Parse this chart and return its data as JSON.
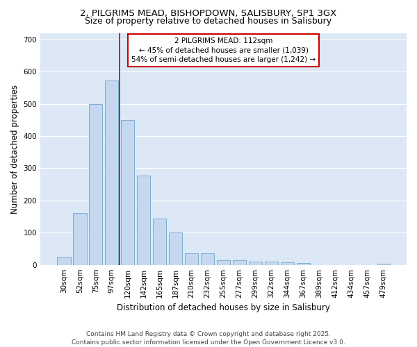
{
  "title_line1": "2, PILGRIMS MEAD, BISHOPDOWN, SALISBURY, SP1 3GX",
  "title_line2": "Size of property relative to detached houses in Salisbury",
  "xlabel": "Distribution of detached houses by size in Salisbury",
  "ylabel": "Number of detached properties",
  "categories": [
    "30sqm",
    "52sqm",
    "75sqm",
    "97sqm",
    "120sqm",
    "142sqm",
    "165sqm",
    "187sqm",
    "210sqm",
    "232sqm",
    "255sqm",
    "277sqm",
    "299sqm",
    "322sqm",
    "344sqm",
    "367sqm",
    "389sqm",
    "412sqm",
    "434sqm",
    "457sqm",
    "479sqm"
  ],
  "values": [
    25,
    160,
    500,
    572,
    450,
    278,
    143,
    100,
    35,
    35,
    15,
    15,
    10,
    10,
    7,
    5,
    0,
    0,
    0,
    0,
    4
  ],
  "bar_color": "#c5d8f0",
  "bar_edge_color": "#7aafd4",
  "plot_bg_color": "#dce8f5",
  "fig_bg_color": "#ffffff",
  "grid_color": "#ffffff",
  "vline_color": "#cc0000",
  "vline_x_index": 4,
  "annotation_box_text": "2 PILGRIMS MEAD: 112sqm\n← 45% of detached houses are smaller (1,039)\n54% of semi-detached houses are larger (1,242) →",
  "annotation_box_edge_color": "#cc0000",
  "annotation_box_face_color": "#ffffff",
  "ylim": [
    0,
    720
  ],
  "yticks": [
    0,
    100,
    200,
    300,
    400,
    500,
    600,
    700
  ],
  "footer": "Contains HM Land Registry data © Crown copyright and database right 2025.\nContains public sector information licensed under the Open Government Licence v3.0.",
  "title_fontsize": 9.5,
  "subtitle_fontsize": 9,
  "axis_label_fontsize": 8.5,
  "tick_fontsize": 7.5,
  "annotation_fontsize": 7.5,
  "footer_fontsize": 6.5
}
